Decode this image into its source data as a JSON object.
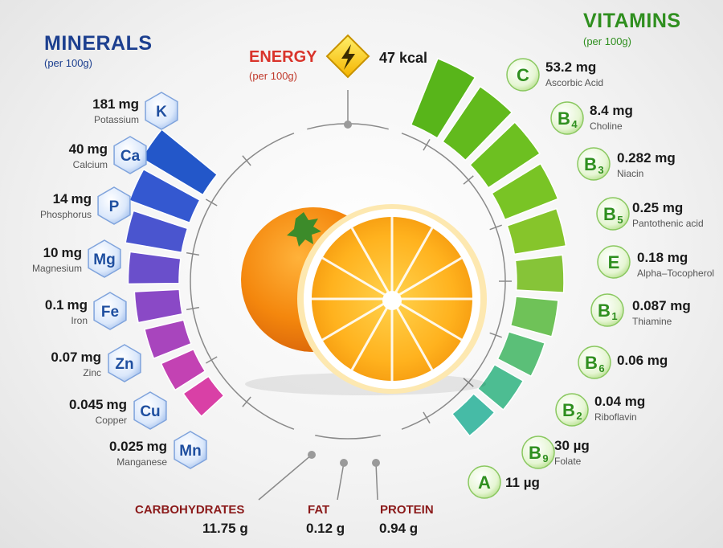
{
  "minerals": {
    "title": "MINERALS",
    "subtitle": "(per 100g)",
    "items": [
      {
        "amount": "181",
        "unit": "mg",
        "name": "Potassium",
        "symbol": "K"
      },
      {
        "amount": "40",
        "unit": "mg",
        "name": "Calcium",
        "symbol": "Ca"
      },
      {
        "amount": "14",
        "unit": "mg",
        "name": "Phosphorus",
        "symbol": "P"
      },
      {
        "amount": "10",
        "unit": "mg",
        "name": "Magnesium",
        "symbol": "Mg"
      },
      {
        "amount": "0.1",
        "unit": "mg",
        "name": "Iron",
        "symbol": "Fe"
      },
      {
        "amount": "0.07",
        "unit": "mg",
        "name": "Zinc",
        "symbol": "Zn"
      },
      {
        "amount": "0.045",
        "unit": "mg",
        "name": "Copper",
        "symbol": "Cu"
      },
      {
        "amount": "0.025",
        "unit": "mg",
        "name": "Manganese",
        "symbol": "Mn"
      }
    ],
    "bar_levels": [
      0.92,
      0.8,
      0.68,
      0.58,
      0.48,
      0.4,
      0.32,
      0.24
    ],
    "bar_colors": [
      "#2357c9",
      "#3458d0",
      "#4a55cf",
      "#6a4fcb",
      "#8a49c6",
      "#a845bd",
      "#c342b3",
      "#d940a6"
    ]
  },
  "vitamins": {
    "title": "VITAMINS",
    "subtitle": "(per 100g)",
    "items": [
      {
        "letter": "C",
        "sub": "",
        "amount": "53.2 mg",
        "name": "Ascorbic Acid"
      },
      {
        "letter": "B",
        "sub": "4",
        "amount": "8.4 mg",
        "name": "Choline"
      },
      {
        "letter": "B",
        "sub": "3",
        "amount": "0.282 mg",
        "name": "Niacin"
      },
      {
        "letter": "B",
        "sub": "5",
        "amount": "0.25 mg",
        "name": "Pantothenic acid"
      },
      {
        "letter": "E",
        "sub": "",
        "amount": "0.18 mg",
        "name": "Alpha–Tocopherol"
      },
      {
        "letter": "B",
        "sub": "1",
        "amount": "0.087 mg",
        "name": "Thiamine"
      },
      {
        "letter": "B",
        "sub": "6",
        "amount": "0.06 mg",
        "name": ""
      },
      {
        "letter": "B",
        "sub": "2",
        "amount": "0.04 mg",
        "name": "Riboflavin"
      },
      {
        "letter": "B",
        "sub": "9",
        "amount": "30 µg",
        "name": "Folate"
      },
      {
        "letter": "A",
        "sub": "",
        "amount": "11 µg",
        "name": ""
      }
    ],
    "bar_levels": [
      0.92,
      0.84,
      0.76,
      0.68,
      0.6,
      0.52,
      0.44,
      0.36,
      0.28,
      0.2
    ],
    "bar_colors": [
      "#58b51a",
      "#62ba1d",
      "#6dc021",
      "#79c425",
      "#86c52b",
      "#86c438",
      "#6fc258",
      "#5bbf78",
      "#4dbd92",
      "#46bba6"
    ]
  },
  "energy": {
    "title": "ENERGY",
    "subtitle": "(per 100g)",
    "value": "47 kcal",
    "icon": "lightning-icon"
  },
  "macros": [
    {
      "label": "CARBOHYDRATES",
      "value": "11.75 g"
    },
    {
      "label": "FAT",
      "value": "0.12 g"
    },
    {
      "label": "PROTEIN",
      "value": "0.94 g"
    }
  ],
  "colors": {
    "minerals_heading": "#1c3f8f",
    "vitamins_heading": "#2f8f1f",
    "energy_heading": "#d9342b",
    "macro_heading": "#8b1a1a",
    "orange": "#f08a12"
  }
}
